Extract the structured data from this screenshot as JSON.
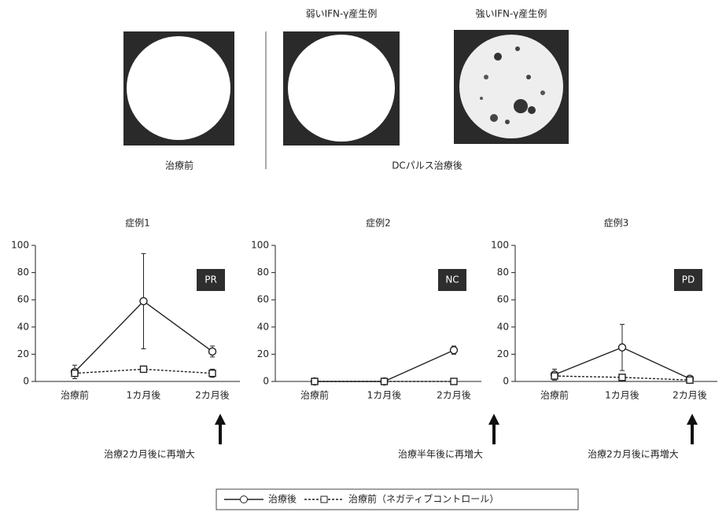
{
  "images": {
    "headers": [
      "弱いIFN-γ産生例",
      "強いIFN-γ産生例"
    ],
    "captions": [
      "治療前",
      "DCパルス治療後"
    ]
  },
  "chart_data": [
    {
      "type": "line",
      "title": "症例1",
      "badge": "PR",
      "note": "治療2カ月後に再増大",
      "categories": [
        "治療前",
        "1カ月後",
        "2カ月後"
      ],
      "ylim": [
        0,
        100
      ],
      "yticks": [
        0,
        20,
        40,
        60,
        80,
        100
      ],
      "series": [
        {
          "name": "治療後",
          "color": "#222222",
          "style": "solid",
          "marker": "circle",
          "values": [
            7,
            59,
            22
          ],
          "errors": [
            5,
            35,
            4
          ]
        },
        {
          "name": "治療前（ネガティブコントロール）",
          "color": "#222222",
          "style": "dashed",
          "marker": "square",
          "values": [
            6,
            9,
            6
          ],
          "errors": [
            2,
            2,
            3
          ]
        }
      ]
    },
    {
      "type": "line",
      "title": "症例2",
      "badge": "NC",
      "note": "治療半年後に再増大",
      "categories": [
        "治療前",
        "1カ月後",
        "2カ月後"
      ],
      "ylim": [
        0,
        100
      ],
      "yticks": [
        0,
        20,
        40,
        60,
        80,
        100
      ],
      "series": [
        {
          "color": "#222222",
          "style": "solid",
          "marker": "circle",
          "values": [
            0,
            0,
            23
          ],
          "errors": [
            0,
            0,
            3
          ]
        },
        {
          "color": "#222222",
          "style": "dashed",
          "marker": "square",
          "values": [
            0,
            0,
            0
          ],
          "errors": [
            0,
            0,
            0
          ]
        }
      ]
    },
    {
      "type": "line",
      "title": "症例3",
      "badge": "PD",
      "note": "治療2カ月後に再増大",
      "categories": [
        "治療前",
        "1カ月後",
        "2カ月後"
      ],
      "ylim": [
        0,
        100
      ],
      "yticks": [
        0,
        20,
        40,
        60,
        80,
        100
      ],
      "series": [
        {
          "color": "#222222",
          "style": "solid",
          "marker": "circle",
          "values": [
            5,
            25,
            2
          ],
          "errors": [
            4,
            17,
            1
          ]
        },
        {
          "color": "#222222",
          "style": "dashed",
          "marker": "square",
          "values": [
            4,
            3,
            1
          ],
          "errors": [
            1,
            1,
            1
          ]
        }
      ]
    }
  ]
}
